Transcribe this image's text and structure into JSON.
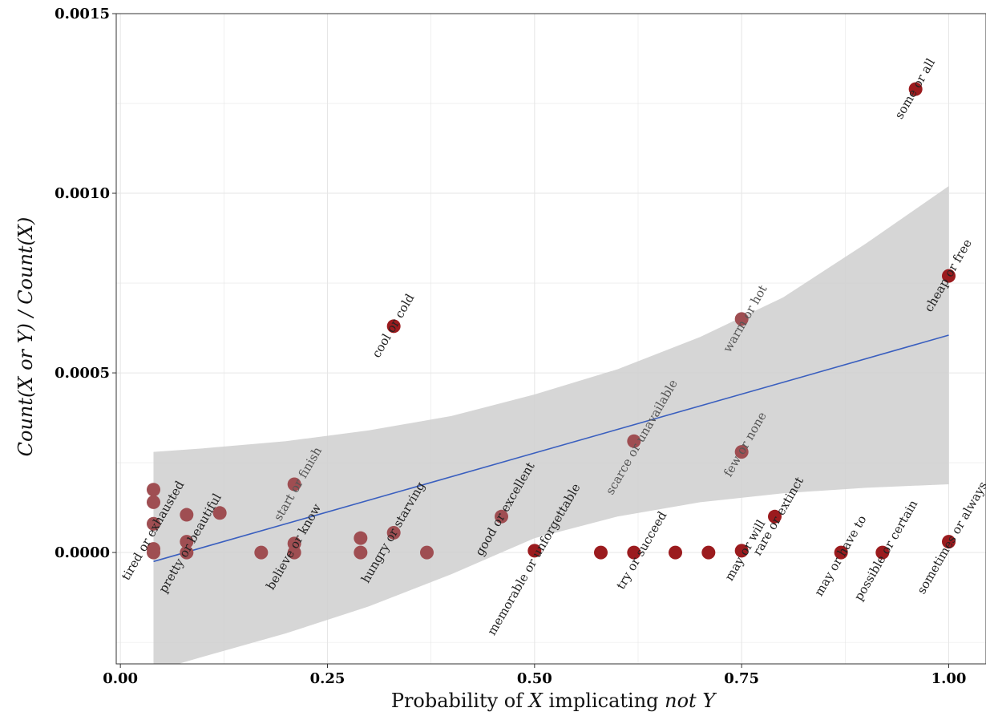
{
  "chart_data": {
    "type": "scatter",
    "title": "",
    "xlabel": {
      "prefix": "Probability of ",
      "x": "X",
      "middle": " implicating ",
      "not_y": "not Y"
    },
    "ylabel": "Count(X or Y) / Count(X)",
    "xlim": [
      -0.005,
      1.045
    ],
    "ylim": [
      -0.00031,
      0.0015
    ],
    "x_ticks": [
      0.0,
      0.25,
      0.5,
      0.75,
      1.0
    ],
    "x_tick_labels": [
      "0.00",
      "0.25",
      "0.50",
      "0.75",
      "1.00"
    ],
    "y_ticks": [
      0.0,
      0.0005,
      0.001,
      0.0015
    ],
    "y_tick_labels": [
      "0.0000",
      "0.0005",
      "0.0010",
      "0.0015"
    ],
    "grid": true,
    "colors": {
      "point": "#9b1b1e",
      "point_highlight": "#9f4e52",
      "line": "#3a5fbf",
      "ribbon": "#cfcfcf",
      "grid": "#e6e6e6"
    },
    "points": [
      {
        "x": 0.04,
        "y": 0.000175,
        "h": true
      },
      {
        "x": 0.04,
        "y": 0.00014,
        "h": true
      },
      {
        "x": 0.04,
        "y": 8e-05,
        "h": true
      },
      {
        "x": 0.04,
        "y": 1e-05,
        "h": true
      },
      {
        "x": 0.04,
        "y": 0.0,
        "h": true
      },
      {
        "x": 0.08,
        "y": 0.000105,
        "h": true
      },
      {
        "x": 0.08,
        "y": 3e-05,
        "h": true
      },
      {
        "x": 0.08,
        "y": 0.0,
        "h": true
      },
      {
        "x": 0.12,
        "y": 0.00011,
        "h": true
      },
      {
        "x": 0.17,
        "y": 0.0,
        "h": true
      },
      {
        "x": 0.21,
        "y": 0.00019,
        "h": true
      },
      {
        "x": 0.21,
        "y": 2.5e-05,
        "h": true
      },
      {
        "x": 0.21,
        "y": 0.0,
        "h": true
      },
      {
        "x": 0.29,
        "y": 4e-05,
        "h": true
      },
      {
        "x": 0.29,
        "y": 0.0,
        "h": true
      },
      {
        "x": 0.33,
        "y": 0.00063,
        "h": false
      },
      {
        "x": 0.33,
        "y": 5.5e-05,
        "h": true
      },
      {
        "x": 0.37,
        "y": 0.0,
        "h": true
      },
      {
        "x": 0.46,
        "y": 0.0001,
        "h": true
      },
      {
        "x": 0.5,
        "y": 5e-06,
        "h": false
      },
      {
        "x": 0.58,
        "y": 0.0,
        "h": false
      },
      {
        "x": 0.62,
        "y": 0.00031,
        "h": true
      },
      {
        "x": 0.62,
        "y": 0.0,
        "h": false
      },
      {
        "x": 0.67,
        "y": 0.0,
        "h": false
      },
      {
        "x": 0.71,
        "y": 0.0,
        "h": false
      },
      {
        "x": 0.75,
        "y": 0.00065,
        "h": true
      },
      {
        "x": 0.75,
        "y": 0.00028,
        "h": true
      },
      {
        "x": 0.75,
        "y": 5e-06,
        "h": false
      },
      {
        "x": 0.79,
        "y": 0.0001,
        "h": false
      },
      {
        "x": 0.87,
        "y": 0.0,
        "h": false
      },
      {
        "x": 0.92,
        "y": 0.0,
        "h": false
      },
      {
        "x": 0.96,
        "y": 0.00129,
        "h": false
      },
      {
        "x": 1.0,
        "y": 0.00077,
        "h": false
      },
      {
        "x": 1.0,
        "y": 3e-05,
        "h": false
      }
    ],
    "labels": [
      {
        "text": "tired or exhausted",
        "x": 0.04,
        "y": 6e-05,
        "h": false
      },
      {
        "text": "pretty or beautiful",
        "x": 0.085,
        "y": 2.5e-05,
        "h": false
      },
      {
        "text": "start or finish",
        "x": 0.215,
        "y": 0.00019,
        "h": true
      },
      {
        "text": "believe or know",
        "x": 0.21,
        "y": 1.5e-05,
        "h": false
      },
      {
        "text": "hungry or starving",
        "x": 0.33,
        "y": 5.5e-05,
        "h": false
      },
      {
        "text": "cool or cold",
        "x": 0.33,
        "y": 0.00063,
        "h": false
      },
      {
        "text": "good or excellent",
        "x": 0.465,
        "y": 0.00012,
        "h": false
      },
      {
        "text": "memorable or unforgettable",
        "x": 0.5,
        "y": -2e-05,
        "h": false
      },
      {
        "text": "scarce or unavailable",
        "x": 0.63,
        "y": 0.00032,
        "h": true
      },
      {
        "text": "try or succeed",
        "x": 0.63,
        "y": 5e-06,
        "h": false
      },
      {
        "text": "few or none",
        "x": 0.755,
        "y": 0.0003,
        "h": true
      },
      {
        "text": "warm or hot",
        "x": 0.755,
        "y": 0.00065,
        "h": true
      },
      {
        "text": "may or will",
        "x": 0.755,
        "y": 5e-06,
        "h": false
      },
      {
        "text": "rare or extinct",
        "x": 0.795,
        "y": 0.0001,
        "h": false
      },
      {
        "text": "may or have to",
        "x": 0.87,
        "y": -1e-05,
        "h": false
      },
      {
        "text": "possible or certain",
        "x": 0.925,
        "y": 5e-06,
        "h": false
      },
      {
        "text": "some or all",
        "x": 0.96,
        "y": 0.00129,
        "h": false
      },
      {
        "text": "cheap or free",
        "x": 1.0,
        "y": 0.00077,
        "h": false
      },
      {
        "text": "sometimes or always",
        "x": 1.005,
        "y": 4e-05,
        "h": false
      }
    ],
    "fit": {
      "x": [
        0.04,
        1.0
      ],
      "y": [
        -2.5e-05,
        0.000605
      ]
    },
    "ribbon": {
      "x": [
        0.04,
        0.1,
        0.2,
        0.3,
        0.4,
        0.5,
        0.6,
        0.7,
        0.8,
        0.9,
        1.0
      ],
      "upper": [
        0.00028,
        0.00029,
        0.00031,
        0.00034,
        0.00038,
        0.00044,
        0.00051,
        0.0006,
        0.00071,
        0.00086,
        0.00102
      ],
      "lower": [
        -0.00033,
        -0.00029,
        -0.000225,
        -0.00015,
        -6e-05,
        4e-05,
        0.0001,
        0.00014,
        0.000165,
        0.00018,
        0.00019
      ]
    }
  }
}
